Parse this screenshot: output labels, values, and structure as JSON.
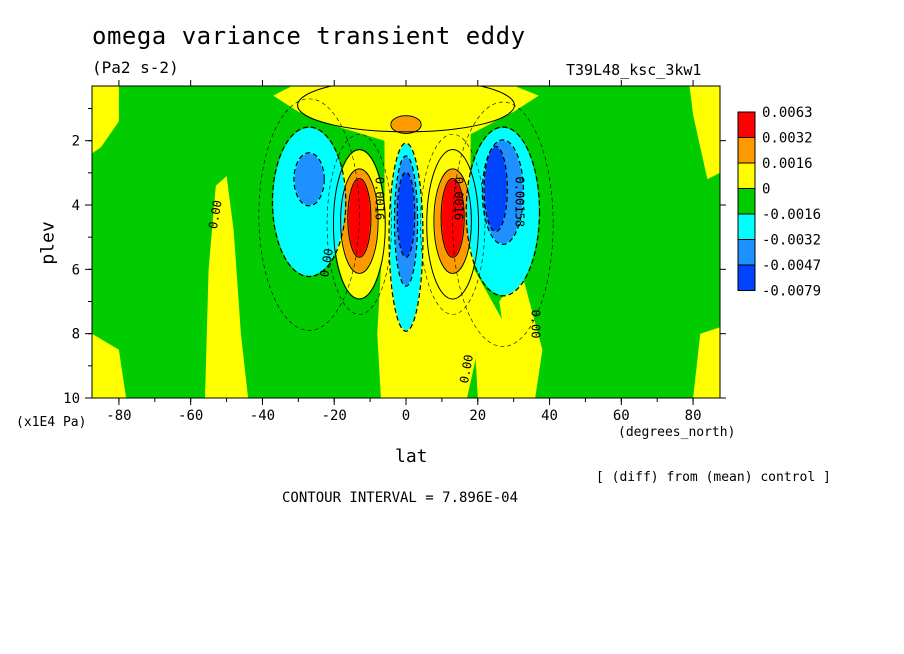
{
  "chart_data": {
    "type": "heatmap",
    "title": "omega variance transient eddy",
    "units": "(Pa2 s-2)",
    "run_label": "T39L48_ksc_3kw1",
    "xlabel": "lat",
    "xunit": "(degrees_north)",
    "ylabel": "plev",
    "yunit": "(x1E4 Pa)",
    "xlim": [
      -87.5,
      87.5
    ],
    "ylim": [
      10,
      0.3
    ],
    "xticks": [
      -80,
      -60,
      -40,
      -20,
      0,
      20,
      40,
      60,
      80
    ],
    "yticks": [
      2,
      4,
      6,
      8,
      10
    ],
    "contour_interval_text": "CONTOUR INTERVAL = 7.896E-04",
    "note": "[ (diff) from (mean) control ]",
    "colorbar": {
      "levels": [
        "0.0063",
        "0.0032",
        "0.0016",
        "0",
        "-0.0016",
        "-0.0032",
        "-0.0047",
        "-0.0079"
      ],
      "colors": [
        "#ff0000",
        "#ff9900",
        "#ffff00",
        "#00cc00",
        "#00ffff",
        "#1e90ff",
        "#0044ff"
      ]
    },
    "contour_labels": [
      {
        "text": "0.00",
        "lat": -53,
        "plev": 4.3,
        "angle": -80
      },
      {
        "text": "0.00",
        "lat": -22,
        "plev": 5.8,
        "angle": -80
      },
      {
        "text": "0.0016",
        "lat": -7.5,
        "plev": 3.8,
        "angle": 90
      },
      {
        "text": "0.0016",
        "lat": 14.5,
        "plev": 3.8,
        "angle": 90
      },
      {
        "text": "0.00",
        "lat": 17,
        "plev": 9.1,
        "angle": -80
      },
      {
        "text": "0.00158",
        "lat": 31.5,
        "plev": 3.9,
        "angle": 90
      },
      {
        "text": "0.00",
        "lat": 36,
        "plev": 7.7,
        "angle": 90
      }
    ],
    "field_blobs": [
      {
        "lat": 0,
        "plev": 0.9,
        "rlat": 30,
        "rplev": 0.8,
        "level": "0.0016"
      },
      {
        "lat": 0,
        "plev": 1.5,
        "rlat": 4,
        "rplev": 0.25,
        "level": "0.0032"
      },
      {
        "lat": -13,
        "plev": 4.6,
        "rlat": 7,
        "rplev": 2.3,
        "level": "0.0016"
      },
      {
        "lat": -13,
        "plev": 4.5,
        "rlat": 5,
        "rplev": 1.6,
        "level": "0.0032"
      },
      {
        "lat": -13,
        "plev": 4.4,
        "rlat": 3,
        "rplev": 1.2,
        "level": "0.0063"
      },
      {
        "lat": 13,
        "plev": 4.6,
        "rlat": 7,
        "rplev": 2.3,
        "level": "0.0016"
      },
      {
        "lat": 13,
        "plev": 4.5,
        "rlat": 5,
        "rplev": 1.6,
        "level": "0.0032"
      },
      {
        "lat": 13,
        "plev": 4.4,
        "rlat": 3,
        "rplev": 1.2,
        "level": "0.0063"
      },
      {
        "lat": 0,
        "plev": 5.0,
        "rlat": 4.5,
        "rplev": 2.9,
        "level": "-0.0016"
      },
      {
        "lat": 0,
        "plev": 4.5,
        "rlat": 3,
        "rplev": 2.0,
        "level": "-0.0032"
      },
      {
        "lat": 0,
        "plev": 4.3,
        "rlat": 2.2,
        "rplev": 1.3,
        "level": "-0.0047"
      },
      {
        "lat": -27,
        "plev": 3.9,
        "rlat": 10,
        "rplev": 2.3,
        "level": "-0.0016"
      },
      {
        "lat": -27,
        "plev": 3.2,
        "rlat": 4,
        "rplev": 0.8,
        "level": "-0.0032"
      },
      {
        "lat": 27,
        "plev": 4.2,
        "rlat": 10,
        "rplev": 2.6,
        "level": "-0.0016"
      },
      {
        "lat": 27,
        "plev": 3.6,
        "rlat": 5.5,
        "rplev": 1.6,
        "level": "-0.0032"
      },
      {
        "lat": 25,
        "plev": 3.5,
        "rlat": 3,
        "rplev": 1.3,
        "level": "-0.0047"
      }
    ]
  }
}
